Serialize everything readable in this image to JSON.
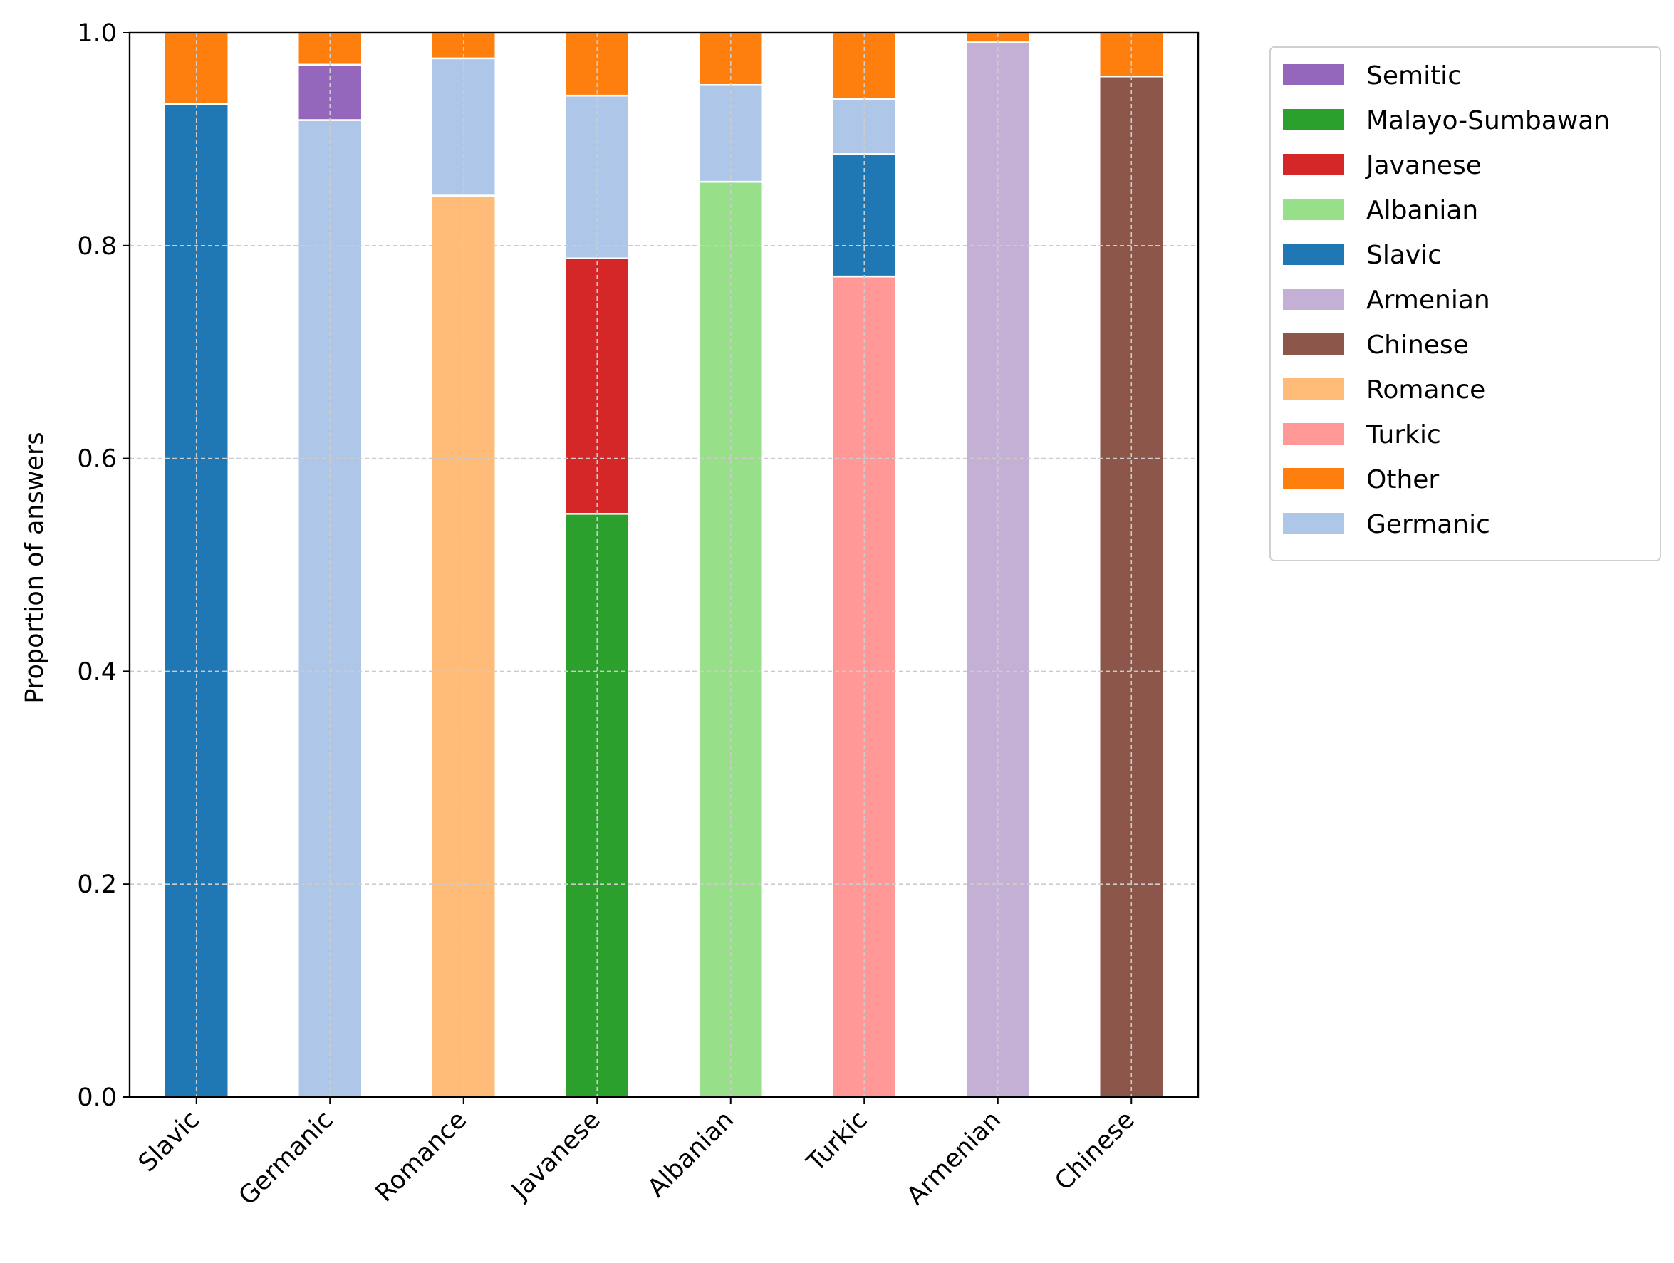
{
  "chart_data": {
    "type": "bar",
    "stacked": true,
    "title": "",
    "xlabel": "",
    "ylabel": "Proportion of answers",
    "ylim": [
      0,
      1.0
    ],
    "yticks": [
      "0.0",
      "0.2",
      "0.4",
      "0.6",
      "0.8",
      "1.0"
    ],
    "grid": true,
    "legend_position": "outside-right-top",
    "categories": [
      "Slavic",
      "Germanic",
      "Romance",
      "Javanese",
      "Albanian",
      "Turkic",
      "Armenian",
      "Chinese"
    ],
    "legend": [
      "Semitic",
      "Malayo-Sumbawan",
      "Javanese",
      "Albanian",
      "Slavic",
      "Armenian",
      "Chinese",
      "Romance",
      "Turkic",
      "Other",
      "Germanic"
    ],
    "colors": {
      "Semitic": "#9467bd",
      "Malayo-Sumbawan": "#2ca02c",
      "Javanese": "#d62728",
      "Albanian": "#98df8a",
      "Slavic": "#1f77b4",
      "Armenian": "#c5b0d5",
      "Chinese": "#8c564b",
      "Romance": "#ffbb78",
      "Turkic": "#ff9896",
      "Other": "#ff7f0e",
      "Germanic": "#aec7e8"
    },
    "stacks": [
      {
        "category": "Slavic",
        "segments": [
          {
            "name": "Slavic",
            "value": 0.933
          },
          {
            "name": "Other",
            "value": 0.067
          }
        ]
      },
      {
        "category": "Germanic",
        "segments": [
          {
            "name": "Germanic",
            "value": 0.918
          },
          {
            "name": "Semitic",
            "value": 0.052
          },
          {
            "name": "Other",
            "value": 0.03
          }
        ]
      },
      {
        "category": "Romance",
        "segments": [
          {
            "name": "Romance",
            "value": 0.847
          },
          {
            "name": "Germanic",
            "value": 0.129
          },
          {
            "name": "Other",
            "value": 0.024
          }
        ]
      },
      {
        "category": "Javanese",
        "segments": [
          {
            "name": "Malayo-Sumbawan",
            "value": 0.548
          },
          {
            "name": "Javanese",
            "value": 0.24
          },
          {
            "name": "Germanic",
            "value": 0.153
          },
          {
            "name": "Other",
            "value": 0.059
          }
        ]
      },
      {
        "category": "Albanian",
        "segments": [
          {
            "name": "Albanian",
            "value": 0.86
          },
          {
            "name": "Germanic",
            "value": 0.091
          },
          {
            "name": "Other",
            "value": 0.049
          }
        ]
      },
      {
        "category": "Turkic",
        "segments": [
          {
            "name": "Turkic",
            "value": 0.771
          },
          {
            "name": "Slavic",
            "value": 0.115
          },
          {
            "name": "Germanic",
            "value": 0.052
          },
          {
            "name": "Other",
            "value": 0.062
          }
        ]
      },
      {
        "category": "Armenian",
        "segments": [
          {
            "name": "Armenian",
            "value": 0.991
          },
          {
            "name": "Other",
            "value": 0.009
          }
        ]
      },
      {
        "category": "Chinese",
        "segments": [
          {
            "name": "Chinese",
            "value": 0.959
          },
          {
            "name": "Other",
            "value": 0.041
          }
        ]
      }
    ]
  }
}
